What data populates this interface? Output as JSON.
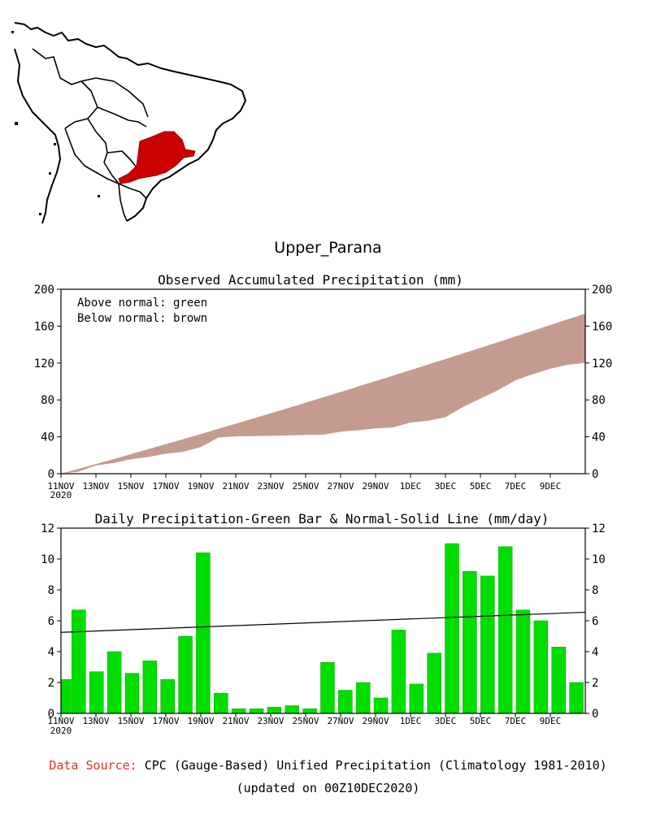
{
  "title": "Upper_Parana",
  "chart_data": [
    {
      "type": "area",
      "title": "Observed Accumulated Precipitation (mm)",
      "legend": [
        "Above normal: green",
        "Below normal: brown"
      ],
      "legend_position": "top-left",
      "ylim": [
        0,
        200
      ],
      "yticks": [
        0,
        40,
        80,
        120,
        160,
        200
      ],
      "xtick_labels": [
        "11NOV",
        "13NOV",
        "15NOV",
        "17NOV",
        "19NOV",
        "21NOV",
        "23NOV",
        "25NOV",
        "27NOV",
        "29NOV",
        "1DEC",
        "3DEC",
        "5DEC",
        "7DEC",
        "9DEC"
      ],
      "xtick_year": "2020",
      "days": [
        "11NOV",
        "12NOV",
        "13NOV",
        "14NOV",
        "15NOV",
        "16NOV",
        "17NOV",
        "18NOV",
        "19NOV",
        "20NOV",
        "21NOV",
        "22NOV",
        "23NOV",
        "24NOV",
        "25NOV",
        "26NOV",
        "27NOV",
        "28NOV",
        "29NOV",
        "30NOV",
        "1DEC",
        "2DEC",
        "3DEC",
        "4DEC",
        "5DEC",
        "6DEC",
        "7DEC",
        "8DEC",
        "9DEC",
        "10DEC"
      ],
      "series": [
        {
          "name": "Observed",
          "values": [
            2.2,
            8.9,
            11.6,
            15.6,
            18.2,
            21.6,
            23.8,
            28.8,
            39.2,
            40.5,
            40.8,
            41.1,
            41.5,
            42.0,
            42.3,
            45.6,
            47.1,
            49.1,
            50.1,
            55.5,
            57.4,
            61.3,
            72.3,
            81.5,
            90.4,
            101.2,
            107.9,
            113.9,
            118.2,
            120.2
          ]
        },
        {
          "name": "Normal",
          "values": [
            5.2,
            10.5,
            15.8,
            21.2,
            26.6,
            32.0,
            37.5,
            43.0,
            48.6,
            54.2,
            59.8,
            65.5,
            71.2,
            77.0,
            82.8,
            88.6,
            94.5,
            100.4,
            106.3,
            112.3,
            118.3,
            124.3,
            130.4,
            136.5,
            142.6,
            148.8,
            155.0,
            161.2,
            167.4,
            173.7
          ]
        }
      ],
      "colors": {
        "above": "#00cc00",
        "below": "#c49b8e"
      }
    },
    {
      "type": "bar",
      "title": "Daily Precipitation-Green Bar & Normal-Solid Line (mm/day)",
      "ylim": [
        0,
        12
      ],
      "yticks": [
        0,
        2,
        4,
        6,
        8,
        10,
        12
      ],
      "xtick_labels": [
        "11NOV",
        "13NOV",
        "15NOV",
        "17NOV",
        "19NOV",
        "21NOV",
        "23NOV",
        "25NOV",
        "27NOV",
        "29NOV",
        "1DEC",
        "3DEC",
        "5DEC",
        "7DEC",
        "9DEC"
      ],
      "xtick_year": "2020",
      "categories": [
        "11NOV",
        "12NOV",
        "13NOV",
        "14NOV",
        "15NOV",
        "16NOV",
        "17NOV",
        "18NOV",
        "19NOV",
        "20NOV",
        "21NOV",
        "22NOV",
        "23NOV",
        "24NOV",
        "25NOV",
        "26NOV",
        "27NOV",
        "28NOV",
        "29NOV",
        "30NOV",
        "1DEC",
        "2DEC",
        "3DEC",
        "4DEC",
        "5DEC",
        "6DEC",
        "7DEC",
        "8DEC",
        "9DEC",
        "10DEC"
      ],
      "values": [
        2.2,
        6.7,
        2.7,
        4.0,
        2.6,
        3.4,
        2.2,
        5.0,
        10.4,
        1.3,
        0.3,
        0.3,
        0.4,
        0.5,
        0.3,
        3.3,
        1.5,
        2.0,
        1.0,
        5.4,
        1.9,
        3.9,
        11.0,
        9.2,
        8.9,
        10.8,
        6.7,
        6.0,
        4.3,
        2.0
      ],
      "normal_line": [
        5.25,
        6.55
      ],
      "colors": {
        "bar": "#00dd00",
        "line": "#000000"
      }
    }
  ],
  "footer": {
    "source_label": "Data Source:",
    "source_text": "CPC (Gauge-Based) Unified Precipitation (Climatology 1981-2010)",
    "updated": "(updated on 00Z10DEC2020)"
  },
  "map": {
    "land_color": "#ffffff",
    "outline_color": "#000000",
    "region_color": "#cc0000"
  }
}
